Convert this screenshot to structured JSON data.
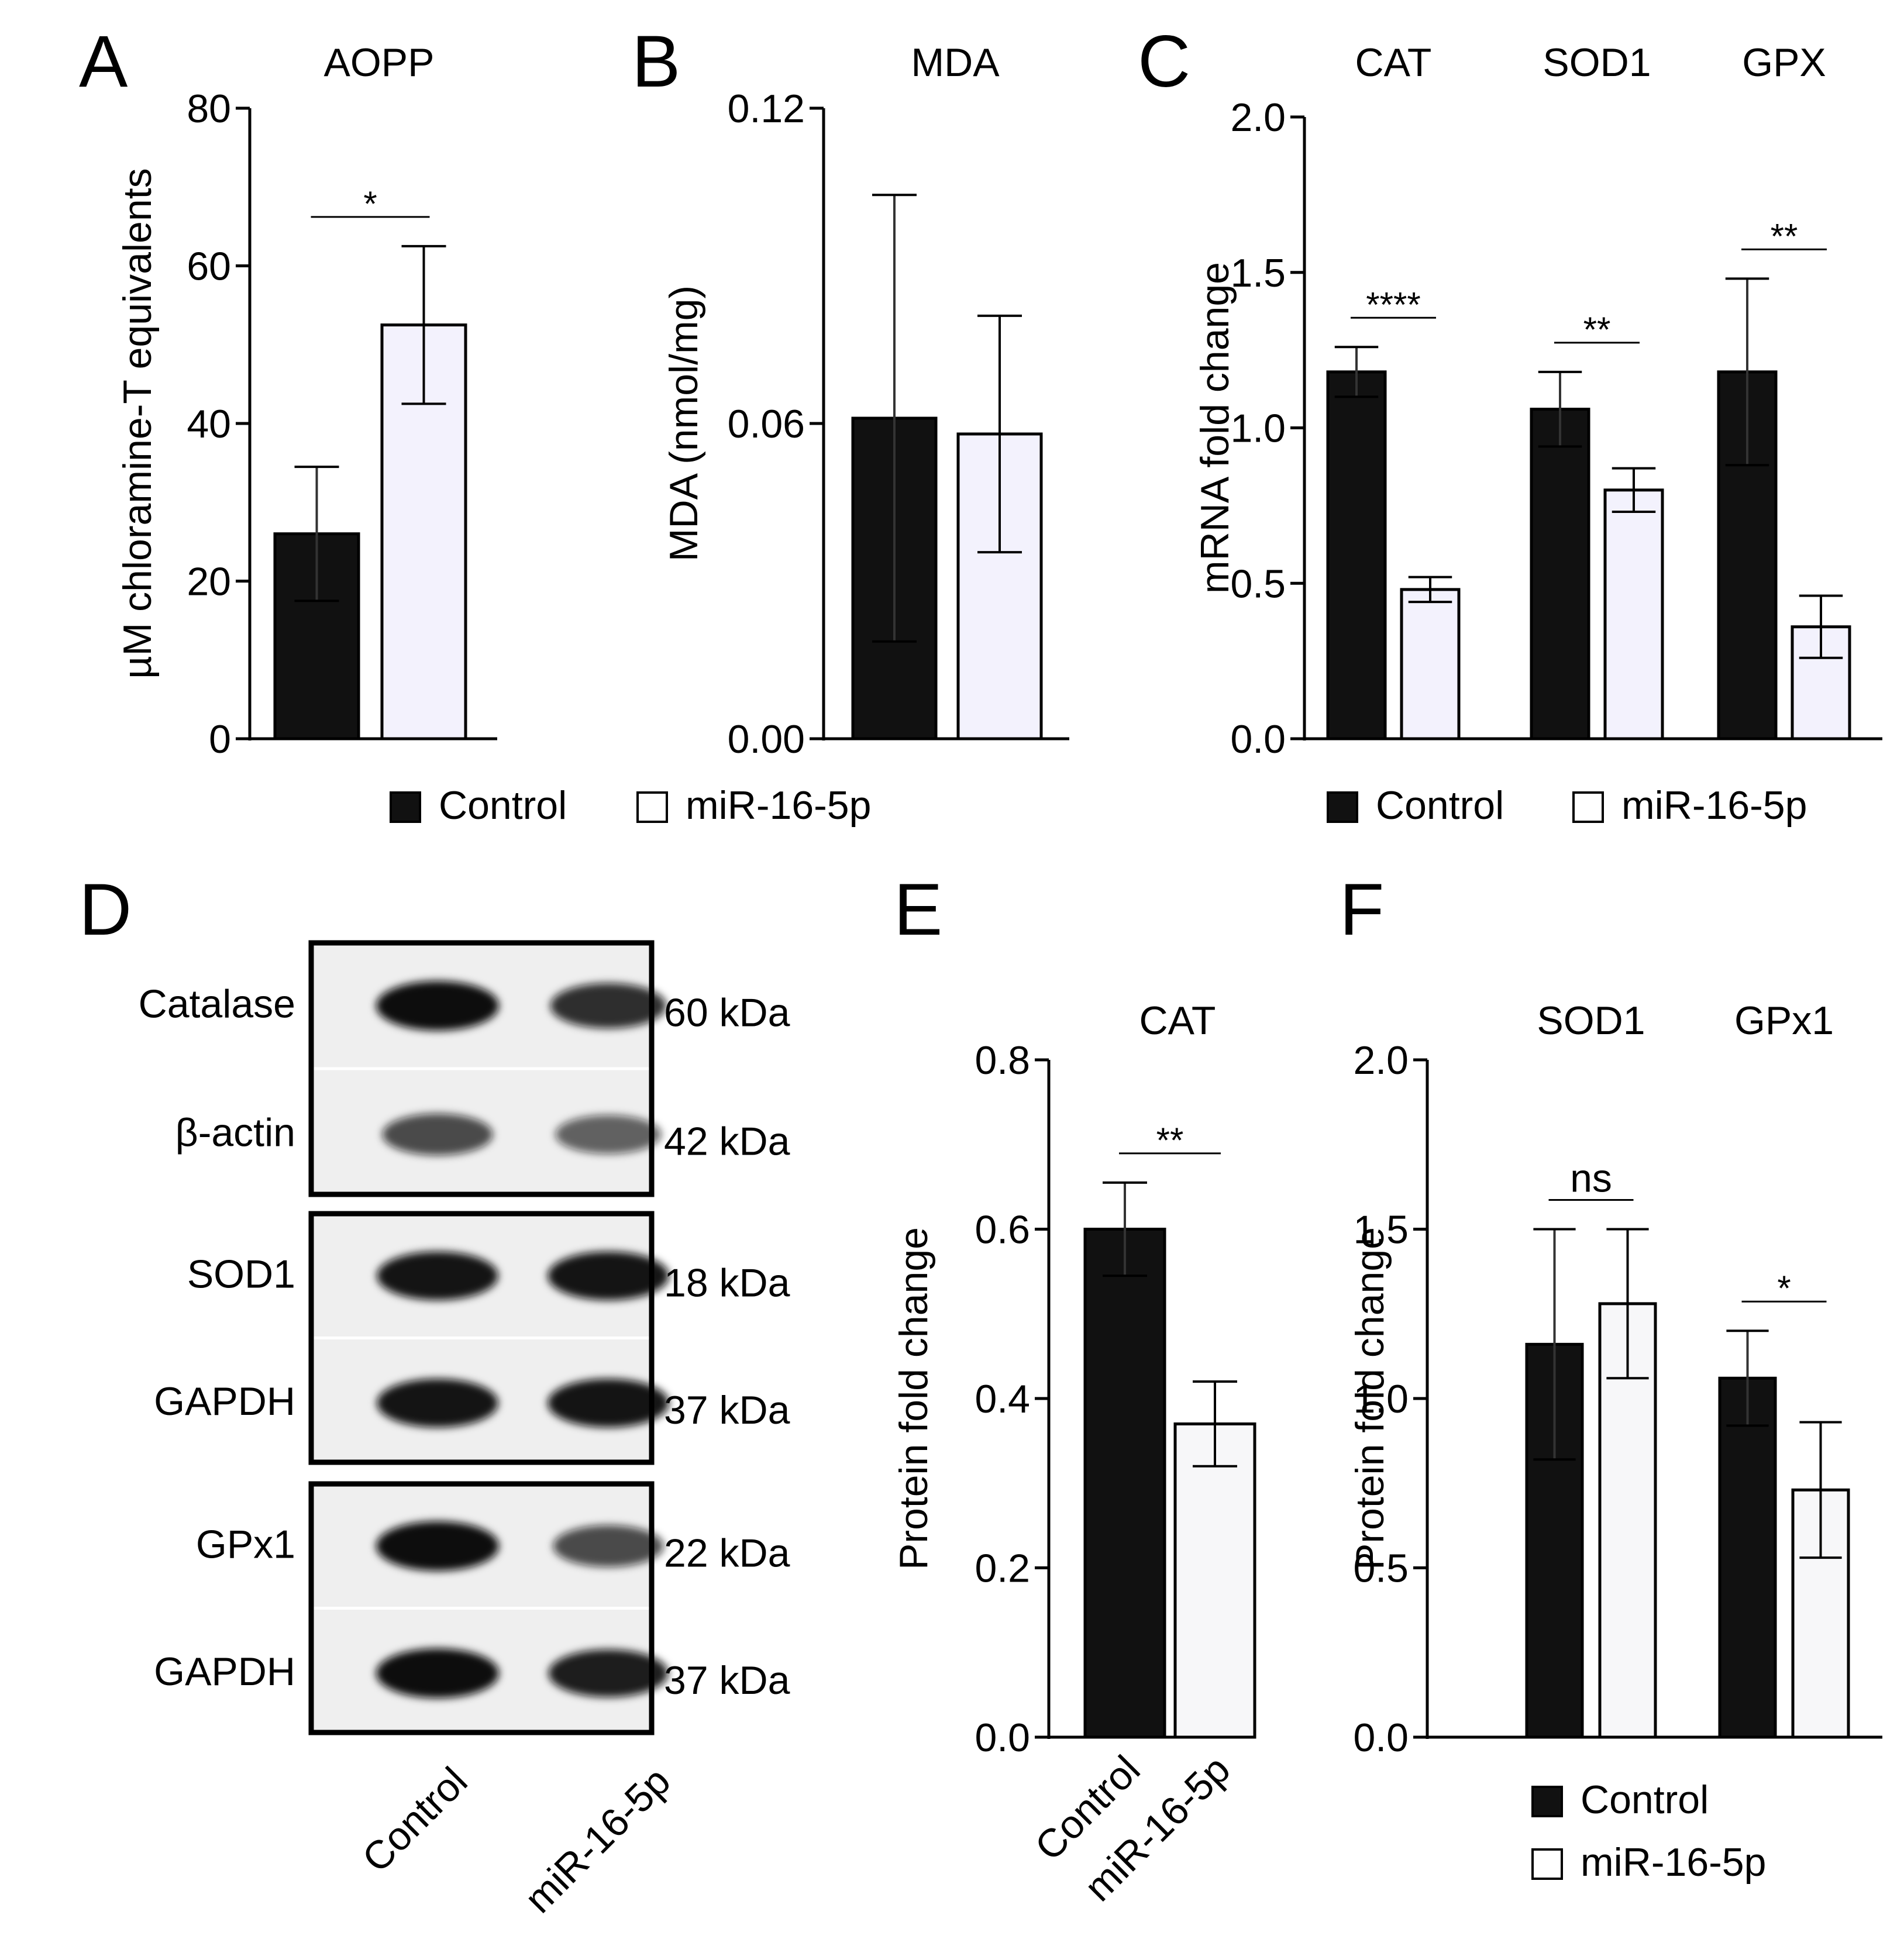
{
  "colors": {
    "control": "#111111",
    "mir_abc": "#f3f2fd",
    "mir_ef": "#f7f7f9",
    "axis": "#000000",
    "blot_bg": "#efefef",
    "blot_band": "#111111"
  },
  "legends": {
    "ab": [
      {
        "key": "control",
        "label": "Control"
      },
      {
        "key": "mir",
        "label": "miR-16-5p"
      }
    ],
    "c": [
      {
        "key": "control",
        "label": "Control"
      },
      {
        "key": "mir",
        "label": "miR-16-5p"
      }
    ],
    "f": [
      {
        "key": "control",
        "label": "Control"
      },
      {
        "key": "mir",
        "label": "miR-16-5p"
      }
    ]
  },
  "chart_data": [
    {
      "panel": "A",
      "type": "bar",
      "title": "AOPP",
      "ylabel": "µM chloramine-T equivalents",
      "xlabel": "",
      "ylim": [
        0,
        80
      ],
      "yticks": [
        "0",
        "20",
        "40",
        "60",
        "80"
      ],
      "categories": [
        ""
      ],
      "series": [
        {
          "name": "Control",
          "values": [
            26
          ],
          "errors": [
            8.5
          ]
        },
        {
          "name": "miR-16-5p",
          "values": [
            52.5
          ],
          "errors": [
            10
          ]
        }
      ],
      "significance": [
        {
          "group": 0,
          "label": "*"
        }
      ]
    },
    {
      "panel": "B",
      "type": "bar",
      "title": "MDA",
      "ylabel": "MDA (nmol/mg)",
      "xlabel": "",
      "ylim": [
        0,
        0.12
      ],
      "yticks": [
        "0.00",
        "0.06",
        "0.12"
      ],
      "categories": [
        ""
      ],
      "series": [
        {
          "name": "Control",
          "values": [
            0.061
          ],
          "errors": [
            0.0425
          ]
        },
        {
          "name": "miR-16-5p",
          "values": [
            0.058
          ],
          "errors": [
            0.0225
          ]
        }
      ],
      "significance": []
    },
    {
      "panel": "C",
      "type": "bar",
      "title": "",
      "ylabel": "mRNA fold change",
      "xlabel": "",
      "ylim": [
        0,
        2.0
      ],
      "yticks": [
        "0.0",
        "0.5",
        "1.0",
        "1.5",
        "2.0"
      ],
      "categories": [
        "CAT",
        "SOD1",
        "GPX"
      ],
      "series": [
        {
          "name": "Control",
          "values": [
            1.18,
            1.06,
            1.18
          ],
          "errors": [
            0.08,
            0.12,
            0.3
          ]
        },
        {
          "name": "miR-16-5p",
          "values": [
            0.48,
            0.8,
            0.36
          ],
          "errors": [
            0.04,
            0.07,
            0.1
          ]
        }
      ],
      "significance": [
        {
          "group": 0,
          "label": "****"
        },
        {
          "group": 1,
          "label": "**"
        },
        {
          "group": 2,
          "label": "**"
        }
      ]
    },
    {
      "panel": "E",
      "type": "bar",
      "title": "CAT",
      "ylabel": "Protein fold change",
      "xlabel": "",
      "ylim": [
        0,
        0.8
      ],
      "yticks": [
        "0.0",
        "0.2",
        "0.4",
        "0.6",
        "0.8"
      ],
      "categories": [
        ""
      ],
      "xticklabels": [
        "Control",
        "miR-16-5p"
      ],
      "series": [
        {
          "name": "Control",
          "values": [
            0.6
          ],
          "errors": [
            0.055
          ]
        },
        {
          "name": "miR-16-5p",
          "values": [
            0.37
          ],
          "errors": [
            0.05
          ]
        }
      ],
      "significance": [
        {
          "group": 0,
          "label": "**"
        }
      ]
    },
    {
      "panel": "F",
      "type": "bar",
      "title": "",
      "ylabel": "Protein fold change",
      "xlabel": "",
      "ylim": [
        0,
        2.0
      ],
      "yticks": [
        "0.0",
        "0.5",
        "1.0",
        "1.5",
        "2.0"
      ],
      "categories": [
        "SOD1",
        "GPx1"
      ],
      "series": [
        {
          "name": "Control",
          "values": [
            1.16,
            1.06
          ],
          "errors": [
            0.34,
            0.14
          ]
        },
        {
          "name": "miR-16-5p",
          "values": [
            1.28,
            0.73
          ],
          "errors": [
            0.22,
            0.2
          ]
        }
      ],
      "significance": [
        {
          "group": 0,
          "label": "ns"
        },
        {
          "group": 1,
          "label": "*"
        }
      ]
    }
  ],
  "blot": {
    "panel": "D",
    "lanes": [
      "Control",
      "miR-16-5p"
    ],
    "boxes": [
      {
        "rows": [
          {
            "protein": "Catalase",
            "size": "60 kDa",
            "intensity": [
              1.0,
              0.78
            ]
          },
          {
            "protein": "β-actin",
            "size": "42 kDa",
            "intensity": [
              0.6,
              0.45
            ]
          }
        ]
      },
      {
        "rows": [
          {
            "protein": "SOD1",
            "size": "18 kDa",
            "intensity": [
              0.95,
              0.95
            ]
          },
          {
            "protein": "GAPDH",
            "size": "37 kDa",
            "intensity": [
              0.95,
              0.95
            ]
          }
        ]
      },
      {
        "rows": [
          {
            "protein": "GPx1",
            "size": "22 kDa",
            "intensity": [
              1.0,
              0.6
            ]
          },
          {
            "protein": "GAPDH",
            "size": "37 kDa",
            "intensity": [
              1.0,
              0.9
            ]
          }
        ]
      }
    ]
  }
}
